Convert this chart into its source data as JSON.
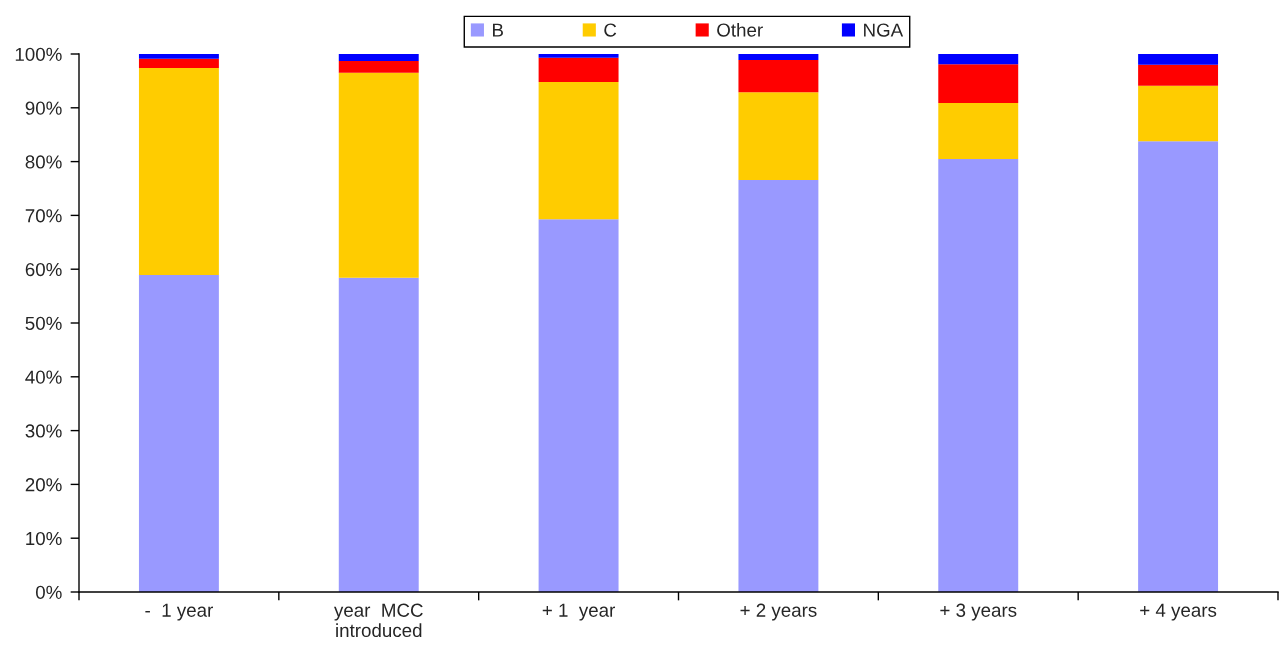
{
  "chart_data": {
    "type": "bar",
    "stacked": true,
    "categories": [
      "-  1 year",
      "year  MCC\nintroduced",
      "+ 1  year",
      "+ 2 years",
      "+ 3 years",
      "+ 4 years"
    ],
    "series": [
      {
        "name": "B",
        "color": "#9999ff",
        "values": [
          58.9,
          58.4,
          69.3,
          76.6,
          80.5,
          83.8
        ]
      },
      {
        "name": "C",
        "color": "#ffcc00",
        "values": [
          38.5,
          38.1,
          25.5,
          16.3,
          10.4,
          10.3
        ]
      },
      {
        "name": "Other",
        "color": "#ff0000",
        "values": [
          1.7,
          2.2,
          4.5,
          6.0,
          7.2,
          3.9
        ]
      },
      {
        "name": "NGA",
        "color": "#0000ff",
        "values": [
          0.9,
          1.3,
          0.7,
          1.1,
          1.9,
          2.0
        ]
      }
    ],
    "ylim": [
      0,
      100
    ],
    "yticks": [
      {
        "value": 0,
        "label": "0%"
      },
      {
        "value": 10,
        "label": "10%"
      },
      {
        "value": 20,
        "label": "20%"
      },
      {
        "value": 30,
        "label": "30%"
      },
      {
        "value": 40,
        "label": "40%"
      },
      {
        "value": 50,
        "label": "50%"
      },
      {
        "value": 60,
        "label": "60%"
      },
      {
        "value": 70,
        "label": "70%"
      },
      {
        "value": 80,
        "label": "80%"
      },
      {
        "value": 90,
        "label": "90%"
      },
      {
        "value": 100,
        "label": "100%"
      }
    ],
    "grid": false,
    "legend": "top"
  }
}
